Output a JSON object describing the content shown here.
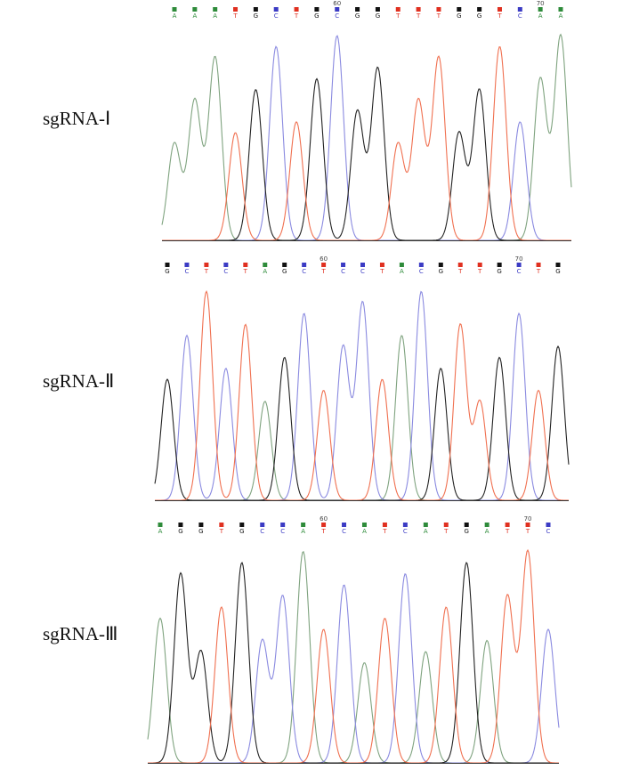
{
  "panels": [
    {
      "label": "sgRNA-Ⅰ",
      "bases": [
        "A",
        "A",
        "A",
        "T",
        "G",
        "C",
        "T",
        "G",
        "C",
        "G",
        "G",
        "T",
        "T",
        "T",
        "G",
        "G",
        "T",
        "C",
        "A",
        "A"
      ],
      "position_labels": [
        null,
        null,
        null,
        null,
        null,
        null,
        null,
        null,
        60,
        null,
        null,
        null,
        null,
        null,
        null,
        null,
        null,
        null,
        70,
        null
      ]
    },
    {
      "label": "sgRNA-Ⅱ",
      "bases": [
        "G",
        "C",
        "T",
        "C",
        "T",
        "A",
        "G",
        "C",
        "T",
        "C",
        "C",
        "T",
        "A",
        "C",
        "G",
        "T",
        "T",
        "G",
        "C",
        "T",
        "G"
      ],
      "position_labels": [
        null,
        null,
        null,
        null,
        null,
        null,
        null,
        null,
        60,
        null,
        null,
        null,
        null,
        null,
        null,
        null,
        null,
        null,
        70,
        null,
        null
      ]
    },
    {
      "label": "sgRNA-Ⅲ",
      "bases": [
        "A",
        "G",
        "G",
        "T",
        "G",
        "C",
        "C",
        "A",
        "T",
        "C",
        "A",
        "T",
        "C",
        "A",
        "T",
        "G",
        "A",
        "T",
        "T",
        "C"
      ],
      "position_labels": [
        null,
        null,
        null,
        null,
        null,
        null,
        null,
        null,
        60,
        null,
        null,
        null,
        null,
        null,
        null,
        null,
        null,
        null,
        70,
        null
      ]
    }
  ]
}
